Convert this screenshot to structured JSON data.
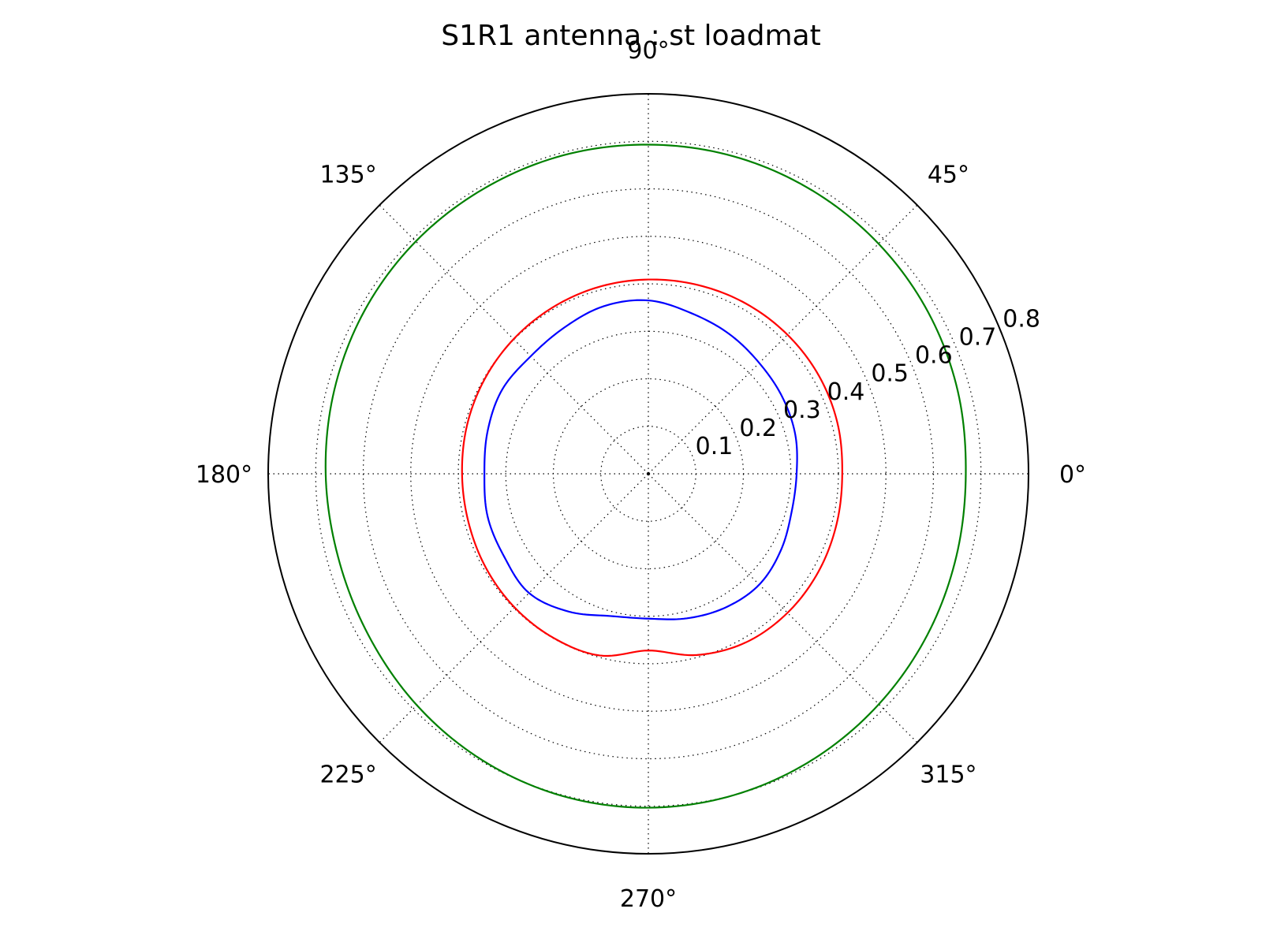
{
  "chart_data": {
    "type": "polar_line",
    "title": "S1R1 antenna : st loadmat",
    "angle_unit": "degrees",
    "angular_ticks": [
      {
        "angle": 0,
        "label": "0°"
      },
      {
        "angle": 45,
        "label": "45°"
      },
      {
        "angle": 90,
        "label": "90°"
      },
      {
        "angle": 135,
        "label": "135°"
      },
      {
        "angle": 180,
        "label": "180°"
      },
      {
        "angle": 225,
        "label": "225°"
      },
      {
        "angle": 270,
        "label": "270°"
      },
      {
        "angle": 315,
        "label": "315°"
      }
    ],
    "radial_ticks": [
      {
        "value": 0.1,
        "label": "0.1"
      },
      {
        "value": 0.2,
        "label": "0.2"
      },
      {
        "value": 0.3,
        "label": "0.3"
      },
      {
        "value": 0.4,
        "label": "0.4"
      },
      {
        "value": 0.5,
        "label": "0.5"
      },
      {
        "value": 0.6,
        "label": "0.6"
      },
      {
        "value": 0.7,
        "label": "0.7"
      },
      {
        "value": 0.8,
        "label": "0.8"
      }
    ],
    "rlim": [
      0,
      0.8
    ],
    "grid": true,
    "theta": [
      0,
      15,
      30,
      45,
      60,
      75,
      90,
      105,
      120,
      135,
      150,
      165,
      180,
      195,
      210,
      225,
      240,
      255,
      270,
      285,
      300,
      315,
      330,
      345,
      360
    ],
    "series": [
      {
        "color": "#008000",
        "r": [
          0.668,
          0.674,
          0.68,
          0.685,
          0.689,
          0.692,
          0.693,
          0.694,
          0.693,
          0.692,
          0.689,
          0.684,
          0.679,
          0.676,
          0.68,
          0.689,
          0.697,
          0.702,
          0.703,
          0.7,
          0.694,
          0.686,
          0.678,
          0.671,
          0.668
        ]
      },
      {
        "color": "#ff0000",
        "r": [
          0.408,
          0.412,
          0.414,
          0.414,
          0.413,
          0.411,
          0.409,
          0.407,
          0.404,
          0.401,
          0.398,
          0.395,
          0.392,
          0.392,
          0.395,
          0.398,
          0.399,
          0.396,
          0.372,
          0.395,
          0.41,
          0.414,
          0.413,
          0.41,
          0.408
        ]
      },
      {
        "color": "#0000ff",
        "r": [
          0.312,
          0.32,
          0.325,
          0.33,
          0.34,
          0.35,
          0.365,
          0.365,
          0.355,
          0.35,
          0.355,
          0.35,
          0.345,
          0.35,
          0.35,
          0.355,
          0.335,
          0.31,
          0.305,
          0.315,
          0.325,
          0.33,
          0.322,
          0.312,
          0.312
        ]
      }
    ]
  }
}
